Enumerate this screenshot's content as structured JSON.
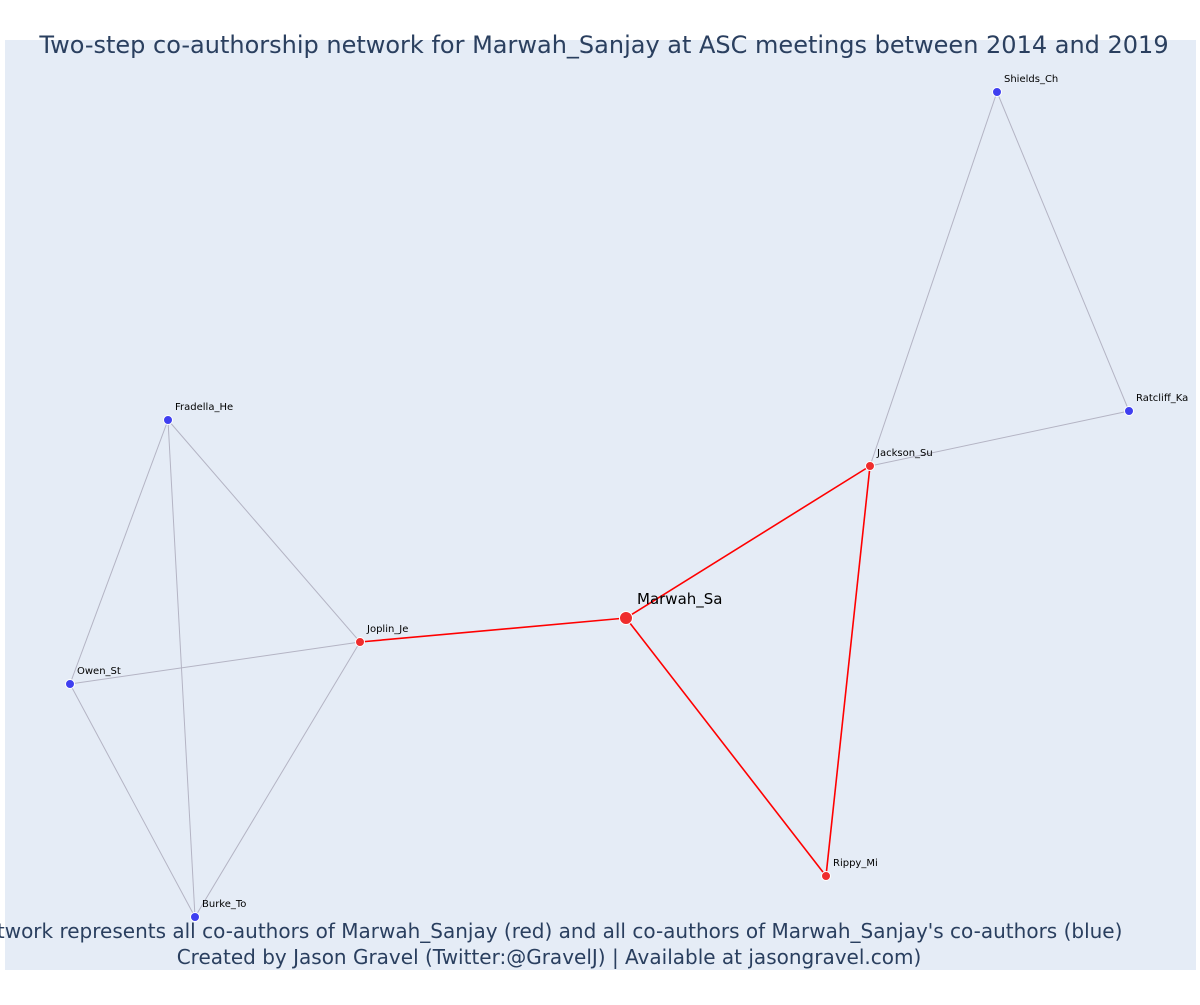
{
  "title": "Two-step co-authorship network for Marwah_Sanjay at ASC meetings between 2014 and 2019",
  "caption": {
    "line1": "Network represents all co-authors of Marwah_Sanjay (red) and all co-authors of Marwah_Sanjay's co-authors (blue)",
    "line2": "Created by Jason Gravel (Twitter:@GravelJ) | Available at jasongravel.com)"
  },
  "colors": {
    "plot_background": "#e5ecf6",
    "title_text": "#2a3f5f",
    "first_step_node": "#ef2d2d",
    "second_step_node": "#3f3ff0",
    "first_step_edge": "#ff0000",
    "second_step_edge": "#b4b4c4"
  },
  "chart_data": {
    "type": "network",
    "focal_node": "Marwah_Sa",
    "nodes": [
      {
        "id": "Marwah_Sa",
        "label": "Marwah_Sa",
        "group": "focal"
      },
      {
        "id": "Jackson_Su",
        "label": "Jackson_Su",
        "group": "coauthor"
      },
      {
        "id": "Joplin_Je",
        "label": "Joplin_Je",
        "group": "coauthor"
      },
      {
        "id": "Rippy_Mi",
        "label": "Rippy_Mi",
        "group": "coauthor"
      },
      {
        "id": "Shields_Ch",
        "label": "Shields_Ch",
        "group": "second_step"
      },
      {
        "id": "Ratcliff_Ka",
        "label": "Ratcliff_Ka",
        "group": "second_step"
      },
      {
        "id": "Fradella_He",
        "label": "Fradella_He",
        "group": "second_step"
      },
      {
        "id": "Owen_St",
        "label": "Owen_St",
        "group": "second_step"
      },
      {
        "id": "Burke_To",
        "label": "Burke_To",
        "group": "second_step"
      }
    ],
    "edges": [
      {
        "source": "Marwah_Sa",
        "target": "Jackson_Su",
        "type": "first_step"
      },
      {
        "source": "Marwah_Sa",
        "target": "Joplin_Je",
        "type": "first_step"
      },
      {
        "source": "Marwah_Sa",
        "target": "Rippy_Mi",
        "type": "first_step"
      },
      {
        "source": "Jackson_Su",
        "target": "Rippy_Mi",
        "type": "first_step"
      },
      {
        "source": "Jackson_Su",
        "target": "Shields_Ch",
        "type": "second_step"
      },
      {
        "source": "Jackson_Su",
        "target": "Ratcliff_Ka",
        "type": "second_step"
      },
      {
        "source": "Shields_Ch",
        "target": "Ratcliff_Ka",
        "type": "second_step"
      },
      {
        "source": "Joplin_Je",
        "target": "Fradella_He",
        "type": "second_step"
      },
      {
        "source": "Joplin_Je",
        "target": "Owen_St",
        "type": "second_step"
      },
      {
        "source": "Joplin_Je",
        "target": "Burke_To",
        "type": "second_step"
      },
      {
        "source": "Fradella_He",
        "target": "Owen_St",
        "type": "second_step"
      },
      {
        "source": "Fradella_He",
        "target": "Burke_To",
        "type": "second_step"
      },
      {
        "source": "Owen_St",
        "target": "Burke_To",
        "type": "second_step"
      }
    ]
  }
}
